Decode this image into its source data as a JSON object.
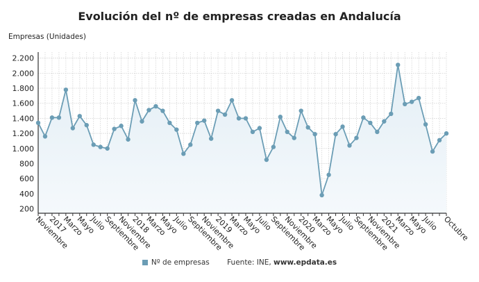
{
  "chart_data": {
    "type": "line",
    "title": "Evolución del nº de empresas creadas en Andalucía",
    "ylabel": "Empresas (Unidades)",
    "xlabel": "",
    "ylim": [
      140,
      2280
    ],
    "yticks": [
      200,
      400,
      600,
      800,
      1000,
      1200,
      1400,
      1600,
      1800,
      2000,
      2200
    ],
    "ytick_labels": [
      "200",
      "400",
      "600",
      "800",
      "1.000",
      "1.200",
      "1.400",
      "1.600",
      "1.800",
      "2.000",
      "2.200"
    ],
    "grid": true,
    "x_tick_labels": [
      {
        "i": 0,
        "label": "Noviembre"
      },
      {
        "i": 2,
        "label": "2017"
      },
      {
        "i": 4,
        "label": "Marzo"
      },
      {
        "i": 6,
        "label": "Mayo"
      },
      {
        "i": 8,
        "label": "Julio"
      },
      {
        "i": 10,
        "label": "Septiembre"
      },
      {
        "i": 12,
        "label": "Noviembre"
      },
      {
        "i": 14,
        "label": "2018"
      },
      {
        "i": 16,
        "label": "Marzo"
      },
      {
        "i": 18,
        "label": "Mayo"
      },
      {
        "i": 20,
        "label": "Julio"
      },
      {
        "i": 22,
        "label": "Septiembre"
      },
      {
        "i": 24,
        "label": "Noviembre"
      },
      {
        "i": 26,
        "label": "2019"
      },
      {
        "i": 28,
        "label": "Marzo"
      },
      {
        "i": 30,
        "label": "Mayo"
      },
      {
        "i": 32,
        "label": "Julio"
      },
      {
        "i": 34,
        "label": "Septiembre"
      },
      {
        "i": 36,
        "label": "Noviembre"
      },
      {
        "i": 38,
        "label": "2020"
      },
      {
        "i": 40,
        "label": "Marzo"
      },
      {
        "i": 42,
        "label": "Mayo"
      },
      {
        "i": 44,
        "label": "Julio"
      },
      {
        "i": 46,
        "label": "Septiembre"
      },
      {
        "i": 48,
        "label": "Noviembre"
      },
      {
        "i": 50,
        "label": "2021"
      },
      {
        "i": 52,
        "label": "Marzo"
      },
      {
        "i": 54,
        "label": "Mayo"
      },
      {
        "i": 56,
        "label": "Julio"
      },
      {
        "i": 59,
        "label": "Octubre"
      }
    ],
    "series": [
      {
        "name": "Nº de empresas",
        "color": "#6b9db5",
        "values": [
          1340,
          1160,
          1410,
          1410,
          1780,
          1270,
          1430,
          1310,
          1050,
          1020,
          1000,
          1260,
          1300,
          1120,
          1640,
          1360,
          1510,
          1560,
          1500,
          1340,
          1250,
          930,
          1050,
          1340,
          1370,
          1130,
          1500,
          1450,
          1640,
          1400,
          1400,
          1220,
          1270,
          850,
          1020,
          1420,
          1220,
          1140,
          1500,
          1280,
          1190,
          380,
          650,
          1190,
          1290,
          1040,
          1140,
          1410,
          1340,
          1220,
          1360,
          1460,
          2110,
          1590,
          1620,
          1670,
          1320,
          960,
          1110,
          1200
        ]
      }
    ],
    "legend": "bottom",
    "source_prefix": "Fuente: INE, ",
    "source_site": "www.epdata.es"
  }
}
